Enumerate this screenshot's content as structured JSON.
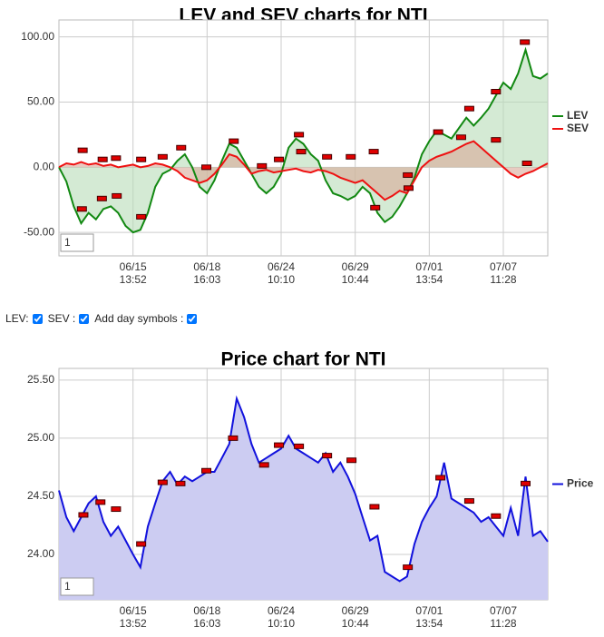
{
  "chart_data": [
    {
      "type": "line",
      "title": "LEV and SEV charts for NTI",
      "xlim": [
        0,
        66
      ],
      "ylim": [
        -68,
        113
      ],
      "yticks": [
        {
          "value": 100,
          "label": "100.00"
        },
        {
          "value": 50,
          "label": "50.00"
        },
        {
          "value": 0,
          "label": "0.00"
        },
        {
          "value": -50,
          "label": "-50.00"
        }
      ],
      "xticks": [
        {
          "value": 10,
          "label": "06/15"
        },
        {
          "value": 20,
          "label": "06/18"
        },
        {
          "value": 30,
          "label": "06/24"
        },
        {
          "value": 40,
          "label": "06/29"
        },
        {
          "value": 50,
          "label": "07/01"
        },
        {
          "value": 60,
          "label": "07/07"
        }
      ],
      "xtick_sublabels": [
        "13:52",
        "16:03",
        "10:10",
        "10:44",
        "13:54",
        "11:28"
      ],
      "grid": true,
      "fill": "to-zero",
      "series": [
        {
          "name": "LEV",
          "color": "#118811",
          "fill_color": "#b8dcb8",
          "values": [
            0,
            -11,
            -30,
            -43,
            -35,
            -40,
            -32,
            -30,
            -35,
            -45,
            -50,
            -48,
            -35,
            -15,
            -5,
            -2,
            5,
            10,
            0,
            -15,
            -20,
            -10,
            5,
            18,
            15,
            5,
            -5,
            -15,
            -20,
            -15,
            -5,
            15,
            22,
            18,
            10,
            5,
            -10,
            -20,
            -22,
            -25,
            -22,
            -15,
            -20,
            -35,
            -42,
            -38,
            -30,
            -20,
            -8,
            10,
            20,
            28,
            25,
            22,
            30,
            38,
            32,
            38,
            45,
            55,
            65,
            60,
            72,
            90,
            70,
            68,
            72
          ]
        },
        {
          "name": "SEV",
          "color": "#ee1111",
          "fill_color": "#d8a898",
          "values": [
            0,
            3,
            2,
            4,
            2,
            3,
            1,
            2,
            0,
            1,
            2,
            0,
            1,
            3,
            2,
            0,
            -3,
            -8,
            -10,
            -12,
            -10,
            -5,
            2,
            10,
            8,
            2,
            -5,
            -3,
            -2,
            -4,
            -3,
            -2,
            -1,
            -3,
            -4,
            -2,
            -3,
            -5,
            -8,
            -10,
            -12,
            -10,
            -15,
            -20,
            -25,
            -22,
            -18,
            -20,
            -10,
            0,
            5,
            8,
            10,
            12,
            15,
            18,
            20,
            15,
            10,
            5,
            0,
            -5,
            -8,
            -5,
            -3,
            0,
            3
          ]
        }
      ],
      "day_symbols": {
        "color": "#e00000",
        "x": [
          3.2,
          3.1,
          5.8,
          5.9,
          7.7,
          7.8,
          11.1,
          11.1,
          14,
          16.5,
          19.9,
          23.6,
          27.4,
          29.7,
          32.4,
          32.7,
          36.2,
          39.4,
          42.5,
          42.7,
          47.1,
          47.2,
          51.2,
          54.3,
          55.4,
          59,
          59,
          62.9,
          63.2
        ],
        "values": [
          13,
          -32,
          -24,
          6,
          7,
          -22,
          6,
          -38,
          8,
          15,
          0,
          20,
          1,
          6,
          25,
          12,
          8,
          8,
          12,
          -31,
          -6,
          -16,
          27,
          23,
          45,
          58,
          21,
          96,
          3
        ]
      },
      "zoom_input": "1"
    },
    {
      "type": "line",
      "title": "Price chart for NTI",
      "xlim": [
        0,
        66
      ],
      "ylim": [
        23.61,
        25.6
      ],
      "yticks": [
        {
          "value": 25.5,
          "label": "25.50"
        },
        {
          "value": 25,
          "label": "25.00"
        },
        {
          "value": 24.5,
          "label": "24.50"
        },
        {
          "value": 24,
          "label": "24.00"
        }
      ],
      "xticks": [
        {
          "value": 10,
          "label": "06/15"
        },
        {
          "value": 20,
          "label": "06/18"
        },
        {
          "value": 30,
          "label": "06/24"
        },
        {
          "value": 40,
          "label": "06/29"
        },
        {
          "value": 50,
          "label": "07/01"
        },
        {
          "value": 60,
          "label": "07/07"
        }
      ],
      "xtick_sublabels": [
        "13:52",
        "16:03",
        "10:10",
        "10:44",
        "13:54",
        "11:28"
      ],
      "grid": true,
      "fill": "to-bottom",
      "series": [
        {
          "name": "Price",
          "color": "#1111dd",
          "fill_color": "#ccccf2",
          "values": [
            24.55,
            24.32,
            24.2,
            24.32,
            24.44,
            24.5,
            24.28,
            24.16,
            24.24,
            24.12,
            24.0,
            23.89,
            24.24,
            24.44,
            24.63,
            24.71,
            24.6,
            24.67,
            24.63,
            24.67,
            24.71,
            24.71,
            24.83,
            24.95,
            25.34,
            25.18,
            24.95,
            24.79,
            24.83,
            24.87,
            24.91,
            25.02,
            24.91,
            24.87,
            24.83,
            24.79,
            24.87,
            24.71,
            24.79,
            24.67,
            24.52,
            24.32,
            24.12,
            24.16,
            23.85,
            23.81,
            23.77,
            23.81,
            24.09,
            24.28,
            24.4,
            24.5,
            24.79,
            24.48,
            24.44,
            24.4,
            24.36,
            24.28,
            24.32,
            24.24,
            24.16,
            24.4,
            24.16,
            24.67,
            24.16,
            24.2,
            24.11
          ]
        }
      ],
      "day_symbols": {
        "color": "#e00000",
        "x": [
          3.3,
          5.6,
          7.7,
          11.1,
          14,
          16.4,
          19.9,
          23.5,
          27.7,
          29.7,
          32.4,
          36.2,
          39.5,
          42.6,
          47.1,
          51.5,
          55.4,
          59,
          63
        ],
        "values": [
          24.34,
          24.45,
          24.39,
          24.09,
          24.62,
          24.61,
          24.72,
          25.0,
          24.77,
          24.94,
          24.93,
          24.85,
          24.81,
          24.41,
          23.89,
          24.66,
          24.46,
          24.33,
          24.61
        ]
      },
      "zoom_input": "1"
    }
  ],
  "controls": {
    "lev": "LEV:",
    "sev": "SEV :",
    "day_symbols": "Add day symbols :"
  }
}
